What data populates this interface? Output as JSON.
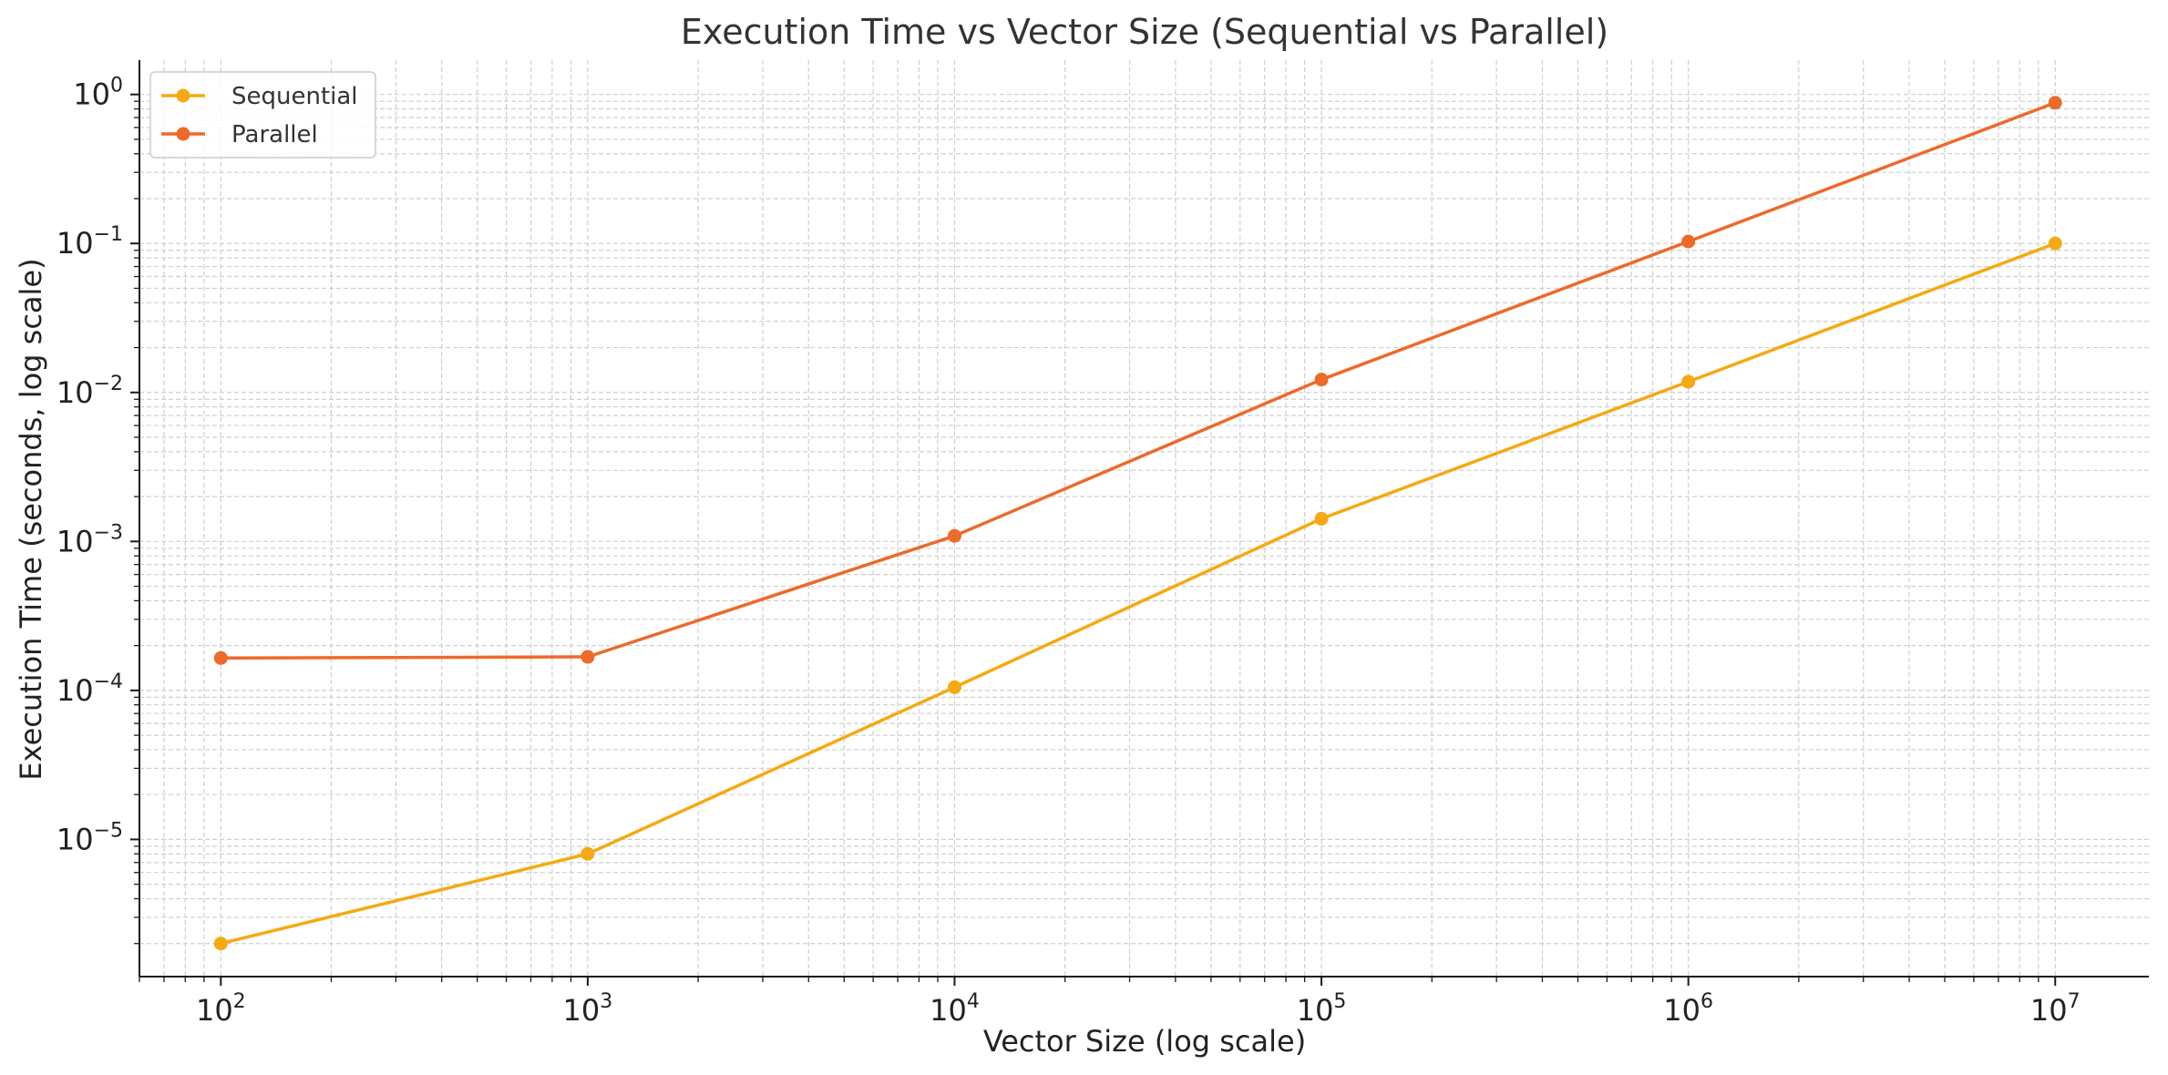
{
  "chart_data": {
    "type": "line",
    "title": "Execution Time vs Vector Size (Sequential vs Parallel)",
    "xlabel": "Vector Size (log scale)",
    "ylabel": "Execution Time (seconds, log scale)",
    "xscale": "log",
    "yscale": "log",
    "xlim": [
      60,
      18000000
    ],
    "ylim": [
      1.2e-06,
      1.7
    ],
    "x": [
      100,
      1000,
      10000,
      100000,
      1000000,
      10000000
    ],
    "x_tick_labels": [
      {
        "base": "10",
        "exp": "2"
      },
      {
        "base": "10",
        "exp": "3"
      },
      {
        "base": "10",
        "exp": "4"
      },
      {
        "base": "10",
        "exp": "5"
      },
      {
        "base": "10",
        "exp": "6"
      },
      {
        "base": "10",
        "exp": "7"
      }
    ],
    "y_tick_labels": [
      {
        "base": "10",
        "exp": "0"
      },
      {
        "base": "10",
        "exp": "−1"
      },
      {
        "base": "10",
        "exp": "−2"
      },
      {
        "base": "10",
        "exp": "−3"
      },
      {
        "base": "10",
        "exp": "−4"
      },
      {
        "base": "10",
        "exp": "−5"
      }
    ],
    "grid": true,
    "legend_position": "top-left",
    "series": [
      {
        "name": "Sequential",
        "color": "#f5a912",
        "marker": "circle",
        "values": [
          2e-06,
          8e-06,
          0.000105,
          0.00142,
          0.0118,
          0.1
        ]
      },
      {
        "name": "Parallel",
        "color": "#ec6a2a",
        "marker": "circle",
        "values": [
          0.000165,
          0.000168,
          0.00109,
          0.0122,
          0.103,
          0.88
        ]
      }
    ]
  }
}
